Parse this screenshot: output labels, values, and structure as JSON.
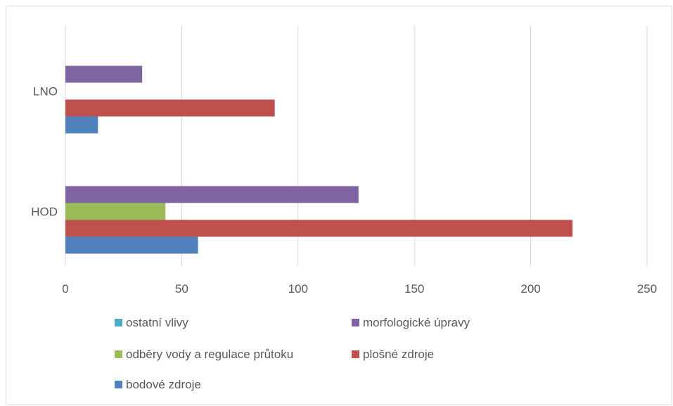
{
  "chart_data": {
    "type": "bar",
    "orientation": "horizontal",
    "categories": [
      "HOD",
      "LNO"
    ],
    "series": [
      {
        "name": "bodové zdroje",
        "color": "#4f81bd",
        "values": [
          57,
          14
        ]
      },
      {
        "name": "plošné zdroje",
        "color": "#c0504d",
        "values": [
          218,
          90
        ]
      },
      {
        "name": "odběry vody a regulace průtoku",
        "color": "#9bbb59",
        "values": [
          43,
          0
        ]
      },
      {
        "name": "morfologické úpravy",
        "color": "#8064a2",
        "values": [
          126,
          33
        ]
      },
      {
        "name": "ostatní vlivy",
        "color": "#4bacc6",
        "values": [
          0,
          0
        ]
      }
    ],
    "xlim": [
      0,
      250
    ],
    "xticks": [
      "0",
      "50",
      "100",
      "150",
      "200",
      "250"
    ],
    "grid": true,
    "legend_position": "bottom",
    "legend_order": [
      "ostatní vlivy",
      "morfologické úpravy",
      "odběry vody a regulace průtoku",
      "plošné zdroje",
      "bodové zdroje"
    ]
  }
}
